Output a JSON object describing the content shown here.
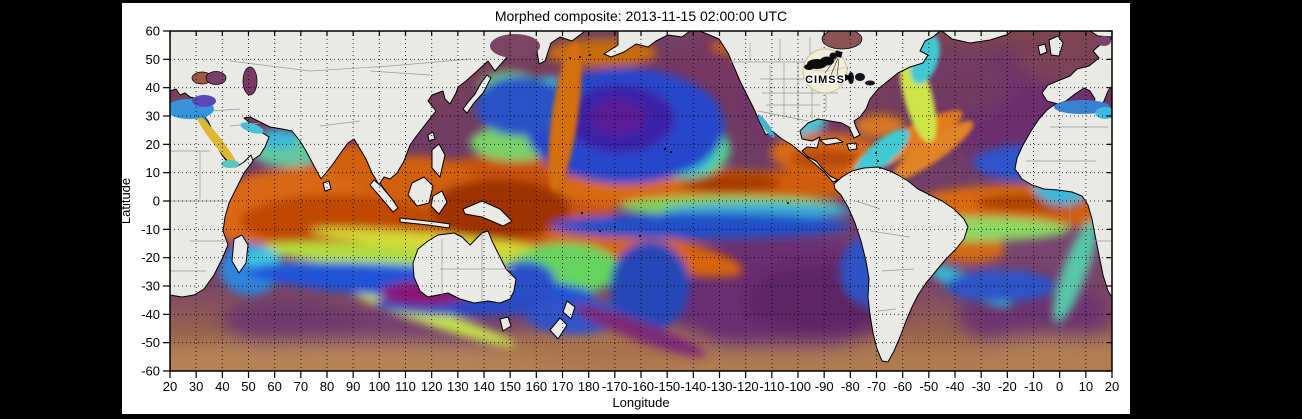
{
  "figure": {
    "title": "Morphed composite: 2013-11-15 02:00:00 UTC",
    "xlabel": "Longitude",
    "ylabel": "Latitude",
    "logo_text": "CIMSS"
  },
  "chart_data": {
    "type": "heatmap",
    "title": "Morphed composite: 2013-11-15 02:00:00 UTC",
    "timestamp_utc": "2013-11-15 02:00:00",
    "xlabel": "Longitude",
    "ylabel": "Latitude",
    "x_tick_labels": [
      "20",
      "30",
      "40",
      "50",
      "60",
      "70",
      "80",
      "90",
      "100",
      "110",
      "120",
      "130",
      "140",
      "150",
      "160",
      "170",
      "180",
      "-170",
      "-160",
      "-150",
      "-140",
      "-130",
      "-120",
      "-110",
      "-100",
      "-90",
      "-80",
      "-70",
      "-60",
      "-50",
      "-40",
      "-30",
      "-20",
      "-10",
      "0",
      "10",
      "20"
    ],
    "y_tick_labels": [
      "60",
      "50",
      "40",
      "30",
      "20",
      "10",
      "0",
      "-10",
      "-20",
      "-30",
      "-40",
      "-50",
      "-60"
    ],
    "x_axis": {
      "start_deg": 20,
      "span_deg": 360,
      "tick_step_deg": 10
    },
    "ylim": [
      -60,
      60
    ],
    "grid": "dotted black at every 10 degrees",
    "legend": "none",
    "content": "Global satellite morphed-composite moisture field over oceans; land masked light gray with black coastlines",
    "palette_low_to_high": [
      "#ab764f",
      "#7a3a5e",
      "#5c1f96",
      "#2547cc",
      "#3ab0dc",
      "#52d494",
      "#b5dc3e",
      "#e0b630",
      "#d96812",
      "#9e3304"
    ]
  },
  "colors": {
    "background": "#000000",
    "panel": "#ffffff",
    "land": "#e9e9e6",
    "coastline": "#000000",
    "grid": "#000000"
  }
}
